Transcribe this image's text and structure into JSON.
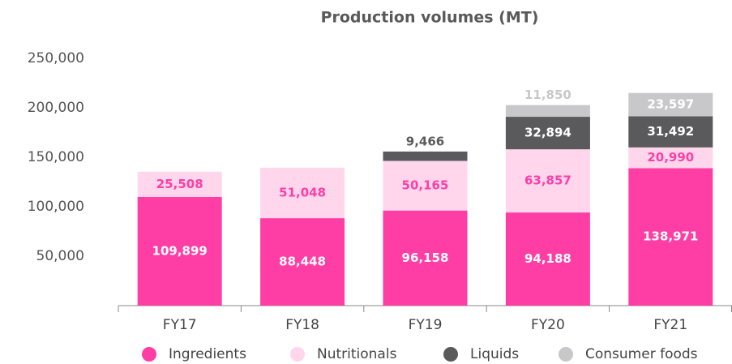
{
  "chart_data": {
    "type": "stacked_bar",
    "title": "Production volumes (MT)",
    "categories": [
      "FY17",
      "FY18",
      "FY19",
      "FY20",
      "FY21"
    ],
    "series": [
      {
        "name": "Ingredients",
        "color": "#ff3ea5",
        "values": [
          109899,
          88448,
          96158,
          94188,
          138971
        ],
        "value_labels": [
          "109,899",
          "88,448",
          "96,158",
          "94,188",
          "138,971"
        ]
      },
      {
        "name": "Nutritionals",
        "color": "#ffd6ec",
        "values": [
          25508,
          51048,
          50165,
          63857,
          20990
        ],
        "value_labels": [
          "25,508",
          "51,048",
          "50,165",
          "63,857",
          "20,990"
        ]
      },
      {
        "name": "Liquids",
        "color": "#5a5a5c",
        "values": [
          null,
          null,
          9466,
          32894,
          31492
        ],
        "value_labels": [
          null,
          null,
          "9,466",
          "32,894",
          "31,492"
        ]
      },
      {
        "name": "Consumer foods",
        "color": "#c8c8ca",
        "values": [
          null,
          null,
          null,
          11850,
          23597
        ],
        "value_labels": [
          null,
          null,
          null,
          "11,850",
          "23,597"
        ]
      }
    ],
    "ylim": [
      0,
      250000
    ],
    "yticks": [
      {
        "value": 50000,
        "label": "50,000"
      },
      {
        "value": 100000,
        "label": "100,000"
      },
      {
        "value": 150000,
        "label": "150,000"
      },
      {
        "value": 200000,
        "label": "200,000"
      },
      {
        "value": 250000,
        "label": "250,000"
      }
    ],
    "legend": "bottom"
  }
}
